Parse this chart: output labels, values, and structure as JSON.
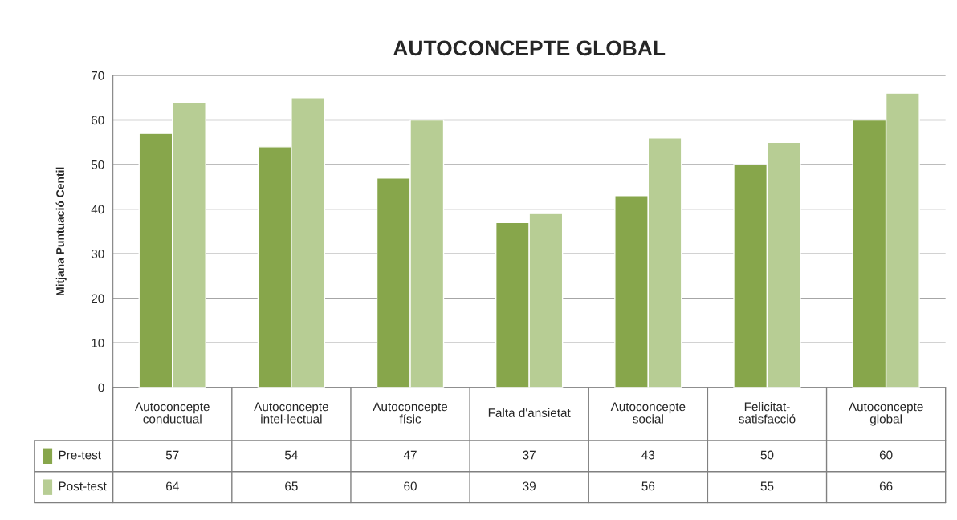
{
  "chart_data": {
    "type": "bar",
    "title": "AUTOCONCEPTE GLOBAL",
    "ylabel": "Mitjana Puntuació Centil",
    "categories": [
      "Autoconcepte\nconductual",
      "Autoconcepte\nintel·lectual",
      "Autoconcepte\nfísic",
      "Falta d'ansietat",
      "Autoconcepte\nsocial",
      "Felicitat-\nsatisfacció",
      "Autoconcepte\nglobal"
    ],
    "series": [
      {
        "name": "Pre-test",
        "color": "#87a64b",
        "values": [
          57,
          54,
          47,
          37,
          43,
          50,
          60
        ]
      },
      {
        "name": "Post-test",
        "color": "#b7cd94",
        "values": [
          64,
          65,
          60,
          39,
          56,
          55,
          66
        ]
      }
    ],
    "ylim": [
      0,
      70
    ],
    "yticks": [
      0,
      10,
      20,
      30,
      40,
      50,
      60,
      70
    ],
    "grid": "y",
    "legend": "bottom left",
    "data_labels": true
  }
}
